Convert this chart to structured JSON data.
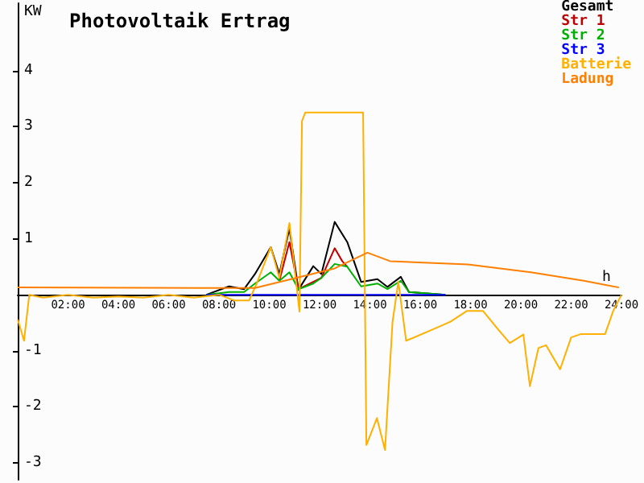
{
  "chart_data": {
    "type": "line",
    "title": "Photovoltaik Ertrag",
    "xlabel": "h",
    "ylabel": "KW",
    "xlim": [
      0,
      24
    ],
    "ylim": [
      -3.3,
      5.2
    ],
    "xticks": [
      {
        "value": 2,
        "label": "02:00"
      },
      {
        "value": 4,
        "label": "04:00"
      },
      {
        "value": 6,
        "label": "06:00"
      },
      {
        "value": 8,
        "label": "08:00"
      },
      {
        "value": 10,
        "label": "10:00"
      },
      {
        "value": 12,
        "label": "12:00"
      },
      {
        "value": 14,
        "label": "14:00"
      },
      {
        "value": 16,
        "label": "16:00"
      },
      {
        "value": 18,
        "label": "18:00"
      },
      {
        "value": 20,
        "label": "20:00"
      },
      {
        "value": 22,
        "label": "22:00"
      },
      {
        "value": 24,
        "label": "24:00"
      }
    ],
    "yticks": [
      -3,
      -2,
      -1,
      1,
      2,
      3,
      4
    ],
    "grid": false,
    "legend": "top right",
    "marker": "none",
    "line_style": "solid",
    "series": [
      {
        "name": "Gesamt",
        "color": "#000000",
        "x": [
          7.5,
          8.4,
          9.0,
          9.43,
          10.06,
          10.4,
          10.8,
          11.16,
          11.75,
          12.07,
          12.6,
          13.1,
          13.65,
          14.3,
          14.7,
          15.23,
          15.55,
          17.0
        ],
        "values": [
          0,
          0.15,
          0.1,
          0.37,
          0.85,
          0.37,
          1.18,
          0.09,
          0.51,
          0.37,
          1.3,
          0.94,
          0.23,
          0.28,
          0.14,
          0.32,
          0.05,
          0
        ]
      },
      {
        "name": "Str 1",
        "color": "#c00000",
        "x": [
          10.4,
          10.8,
          11.16,
          12.07,
          12.6,
          12.9,
          13.1
        ],
        "values": [
          0.25,
          0.94,
          0.1,
          0.3,
          0.83,
          0.6,
          0.5
        ]
      },
      {
        "name": "Str 2",
        "color": "#00b000",
        "x": [
          7.5,
          8.4,
          9.0,
          9.43,
          10.06,
          10.4,
          10.8,
          11.16,
          11.75,
          12.07,
          12.6,
          13.1,
          13.65,
          14.3,
          14.7,
          15.23,
          15.55,
          17.0
        ],
        "values": [
          0,
          0.05,
          0.05,
          0.2,
          0.4,
          0.25,
          0.4,
          0.1,
          0.2,
          0.3,
          0.55,
          0.5,
          0.15,
          0.2,
          0.1,
          0.25,
          0.05,
          0
        ]
      },
      {
        "name": "Str 3",
        "color": "#0000ff",
        "x": [
          7.5,
          17.0
        ],
        "values": [
          0,
          0
        ]
      },
      {
        "name": "Batterie",
        "color": "#ffb000",
        "x": [
          0,
          0.25,
          0.46,
          1,
          2,
          3,
          4,
          5,
          6,
          7,
          8,
          8.6,
          9.2,
          9.5,
          10.06,
          10.4,
          10.8,
          11.2,
          11.3,
          11.43,
          13.73,
          13.86,
          14.28,
          14.6,
          14.9,
          15.13,
          15.44,
          16.6,
          17.2,
          17.85,
          18.5,
          19.1,
          19.56,
          20.1,
          20.36,
          20.7,
          21.0,
          21.56,
          22.0,
          22.4,
          23.35,
          23.67,
          24.0
        ],
        "values": [
          -0.44,
          -0.82,
          0,
          -0.05,
          0,
          -0.05,
          -0.03,
          -0.05,
          0,
          -0.05,
          0,
          -0.1,
          -0.1,
          0.2,
          0.85,
          0.3,
          1.28,
          -0.3,
          3.1,
          3.25,
          3.25,
          -2.68,
          -2.2,
          -2.77,
          -0.48,
          0.23,
          -0.82,
          -0.6,
          -0.48,
          -0.29,
          -0.29,
          -0.62,
          -0.86,
          -0.71,
          -1.63,
          -0.95,
          -0.9,
          -1.33,
          -0.76,
          -0.7,
          -0.7,
          -0.29,
          0
        ]
      },
      {
        "name": "Ladung",
        "color": "#ff8000",
        "x": [
          0,
          9.43,
          12.6,
          13.9,
          14.8,
          17.9,
          20.4,
          22.5,
          23.9
        ],
        "values": [
          0.13,
          0.12,
          0.47,
          0.75,
          0.6,
          0.54,
          0.4,
          0.25,
          0.13
        ]
      }
    ]
  }
}
